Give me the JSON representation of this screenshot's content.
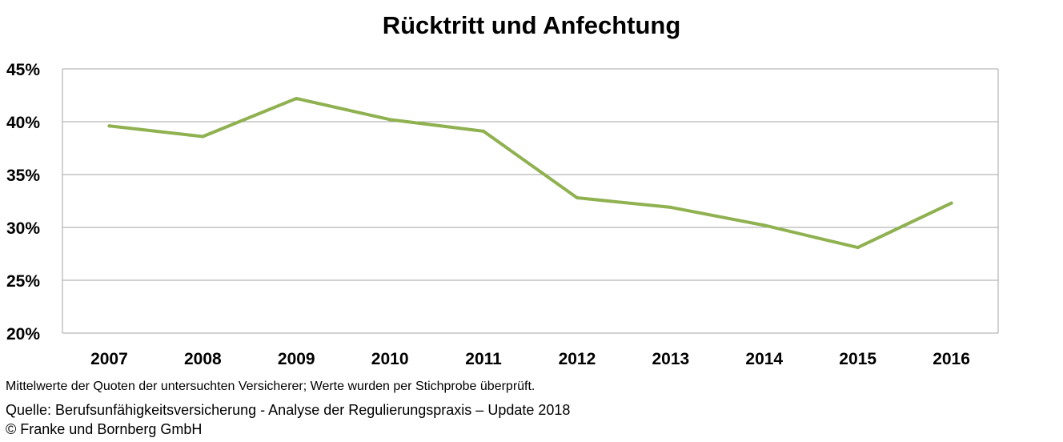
{
  "chart_data": {
    "type": "line",
    "title": "Rücktritt und Anfechtung",
    "categories": [
      "2007",
      "2008",
      "2009",
      "2010",
      "2011",
      "2012",
      "2013",
      "2014",
      "2015",
      "2016"
    ],
    "series": [
      {
        "values": [
          39.6,
          38.6,
          42.2,
          40.2,
          39.1,
          32.8,
          31.9,
          30.2,
          28.1,
          32.3
        ]
      }
    ],
    "ylim": [
      20,
      45
    ],
    "yticks": [
      20,
      25,
      30,
      35,
      40,
      45
    ],
    "ytick_labels": [
      "20%",
      "25%",
      "30%",
      "35%",
      "40%",
      "45%"
    ],
    "grid": "horizontal",
    "legend": "none",
    "line_color": "#8fb150",
    "grid_color": "#a6a6a6"
  },
  "footnotes": {
    "note": "Mittelwerte der Quoten der untersuchten Versicherer; Werte wurden per Stichprobe überprüft.",
    "source": "Quelle: Berufsunfähigkeitsversicherung - Analyse der Regulierungspraxis – Update 2018",
    "copyright": "© Franke und Bornberg GmbH"
  }
}
